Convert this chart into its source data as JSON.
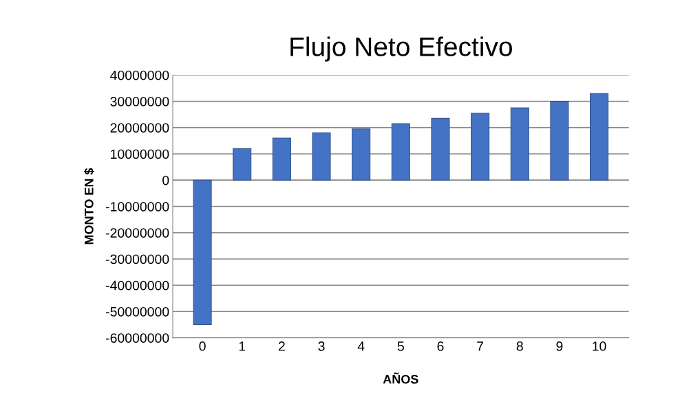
{
  "chart_data": {
    "type": "bar",
    "title": "Flujo Neto Efectivo",
    "xlabel": "AÑOS",
    "ylabel": "MONTO EN $",
    "categories": [
      "0",
      "1",
      "2",
      "3",
      "4",
      "5",
      "6",
      "7",
      "8",
      "9",
      "10"
    ],
    "values": [
      -55000000,
      12000000,
      16000000,
      18000000,
      19500000,
      21500000,
      23500000,
      25500000,
      27500000,
      30000000,
      33000000
    ],
    "color": "#4472c4",
    "ylim": [
      -60000000,
      40000000
    ],
    "yticks": [
      -60000000,
      -50000000,
      -40000000,
      -30000000,
      -20000000,
      -10000000,
      0,
      10000000,
      20000000,
      30000000,
      40000000
    ],
    "grid": "y"
  }
}
